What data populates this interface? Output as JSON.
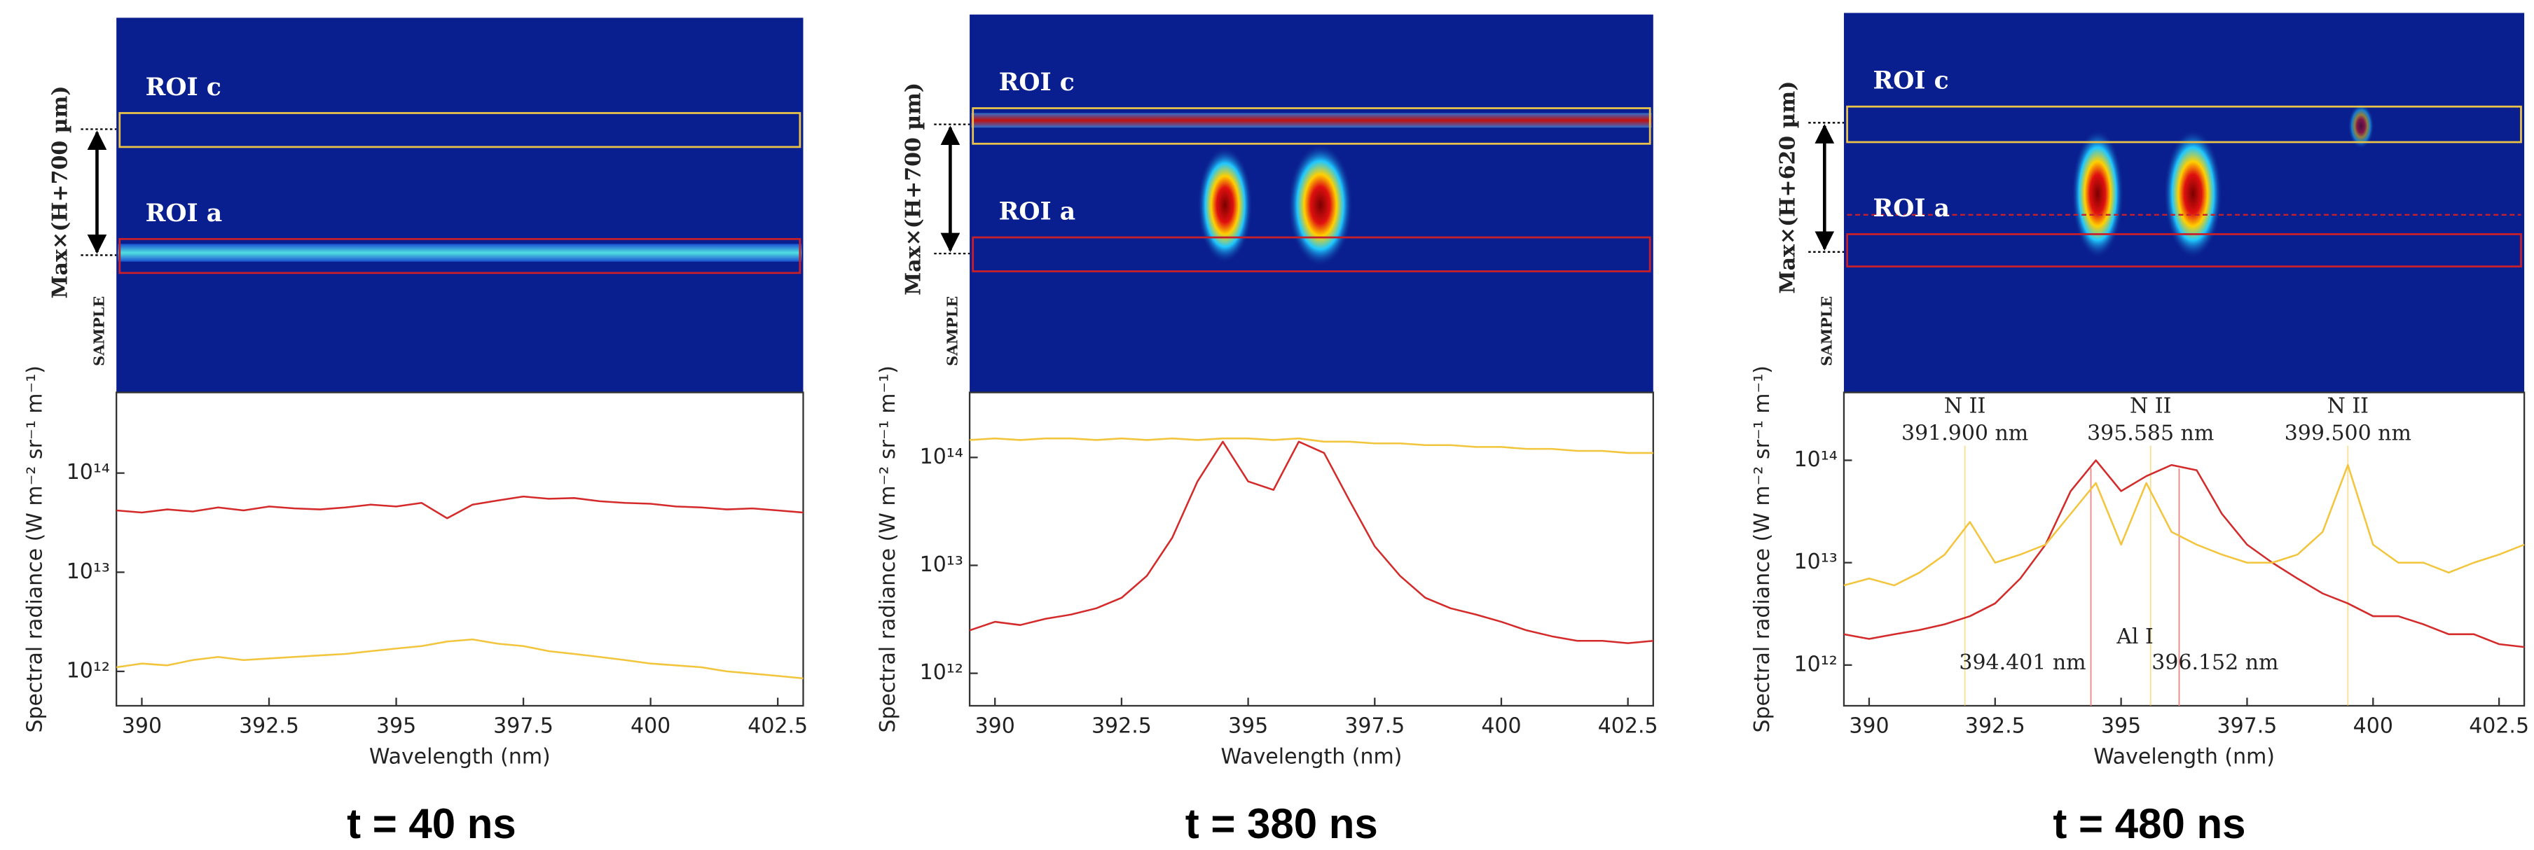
{
  "chart_data": [
    {
      "type": "line",
      "caption": "t = 40 ns",
      "roi_c_label": "ROI c",
      "roi_a_label": "ROI a",
      "height_label": "Max×(H+700 µm)",
      "sample_label": "SAMPLE",
      "x_label": "Wavelength (nm)",
      "y_label": "Spectral radiance (W m⁻² sr⁻¹ m⁻¹)",
      "log_y": true,
      "xlim": [
        389.5,
        403
      ],
      "xticks": [
        390,
        392.5,
        395,
        397.5,
        400,
        402.5
      ],
      "ylim": [
        450000000000.0,
        650000000000000.0
      ],
      "yticks": [
        {
          "value": 1000000000000.0,
          "label": "10¹²"
        },
        {
          "value": 10000000000000.0,
          "label": "10¹³"
        },
        {
          "value": 100000000000000.0,
          "label": "10¹⁴"
        }
      ],
      "x": [
        389.5,
        390,
        390.5,
        391,
        391.5,
        392,
        392.5,
        393,
        393.5,
        394,
        394.5,
        395,
        395.5,
        396,
        396.5,
        397,
        397.5,
        398,
        398.5,
        399,
        399.5,
        400,
        400.5,
        401,
        401.5,
        402,
        402.5,
        403
      ],
      "series": [
        {
          "color": "#d42a2a",
          "values": [
            42000000000000.0,
            40000000000000.0,
            43000000000000.0,
            41000000000000.0,
            45000000000000.0,
            42000000000000.0,
            46000000000000.0,
            44000000000000.0,
            43000000000000.0,
            45000000000000.0,
            48000000000000.0,
            46000000000000.0,
            50000000000000.0,
            35000000000000.0,
            48000000000000.0,
            53000000000000.0,
            58000000000000.0,
            55000000000000.0,
            56000000000000.0,
            52000000000000.0,
            50000000000000.0,
            49000000000000.0,
            46000000000000.0,
            45000000000000.0,
            43000000000000.0,
            44000000000000.0,
            42000000000000.0,
            40000000000000.0
          ]
        },
        {
          "color": "#f2c53d",
          "values": [
            1100000000000.0,
            1200000000000.0,
            1150000000000.0,
            1300000000000.0,
            1400000000000.0,
            1300000000000.0,
            1350000000000.0,
            1400000000000.0,
            1450000000000.0,
            1500000000000.0,
            1600000000000.0,
            1700000000000.0,
            1800000000000.0,
            2000000000000.0,
            2100000000000.0,
            1900000000000.0,
            1800000000000.0,
            1600000000000.0,
            1500000000000.0,
            1400000000000.0,
            1300000000000.0,
            1200000000000.0,
            1150000000000.0,
            1100000000000.0,
            1000000000000.0,
            950000000000.0,
            900000000000.0,
            850000000000.0
          ]
        }
      ]
    },
    {
      "type": "line",
      "caption": "t = 380 ns",
      "roi_c_label": "ROI c",
      "roi_a_label": "ROI a",
      "height_label": "Max×(H+700 µm)",
      "sample_label": "SAMPLE",
      "x_label": "Wavelength (nm)",
      "y_label": "Spectral radiance (W m⁻² sr⁻¹ m⁻¹)",
      "log_y": true,
      "xlim": [
        389.5,
        403
      ],
      "xticks": [
        390,
        392.5,
        395,
        397.5,
        400,
        402.5
      ],
      "ylim": [
        500000000000.0,
        400000000000000.0
      ],
      "yticks": [
        {
          "value": 1000000000000.0,
          "label": "10¹²"
        },
        {
          "value": 10000000000000.0,
          "label": "10¹³"
        },
        {
          "value": 100000000000000.0,
          "label": "10¹⁴"
        }
      ],
      "x": [
        389.5,
        390,
        390.5,
        391,
        391.5,
        392,
        392.5,
        393,
        393.5,
        394,
        394.5,
        395,
        395.5,
        396,
        396.5,
        397,
        397.5,
        398,
        398.5,
        399,
        399.5,
        400,
        400.5,
        401,
        401.5,
        402,
        402.5,
        403
      ],
      "series": [
        {
          "color": "#d42a2a",
          "values": [
            2500000000000.0,
            3000000000000.0,
            2800000000000.0,
            3200000000000.0,
            3500000000000.0,
            4000000000000.0,
            5000000000000.0,
            8000000000000.0,
            18000000000000.0,
            60000000000000.0,
            140000000000000.0,
            60000000000000.0,
            50000000000000.0,
            140000000000000.0,
            110000000000000.0,
            40000000000000.0,
            15000000000000.0,
            8000000000000.0,
            5000000000000.0,
            4000000000000.0,
            3500000000000.0,
            3000000000000.0,
            2500000000000.0,
            2200000000000.0,
            2000000000000.0,
            2000000000000.0,
            1900000000000.0,
            2000000000000.0
          ]
        },
        {
          "color": "#f2c53d",
          "values": [
            145000000000000.0,
            150000000000000.0,
            145000000000000.0,
            150000000000000.0,
            150000000000000.0,
            145000000000000.0,
            150000000000000.0,
            145000000000000.0,
            150000000000000.0,
            145000000000000.0,
            150000000000000.0,
            150000000000000.0,
            145000000000000.0,
            150000000000000.0,
            140000000000000.0,
            140000000000000.0,
            135000000000000.0,
            135000000000000.0,
            130000000000000.0,
            130000000000000.0,
            125000000000000.0,
            125000000000000.0,
            120000000000000.0,
            120000000000000.0,
            115000000000000.0,
            115000000000000.0,
            110000000000000.0,
            110000000000000.0
          ]
        }
      ]
    },
    {
      "type": "line",
      "caption": "t = 480 ns",
      "roi_c_label": "ROI c",
      "roi_a_label": "ROI a",
      "height_label": "Max×(H+620 µm)",
      "sample_label": "SAMPLE",
      "x_label": "Wavelength (nm)",
      "y_label": "Spectral radiance (W m⁻² sr⁻¹ m⁻¹)",
      "log_y": true,
      "xlim": [
        389.5,
        403
      ],
      "xticks": [
        390,
        392.5,
        395,
        397.5,
        400,
        402.5
      ],
      "ylim": [
        400000000000.0,
        460000000000000.0
      ],
      "yticks": [
        {
          "value": 1000000000000.0,
          "label": "10¹²"
        },
        {
          "value": 10000000000000.0,
          "label": "10¹³"
        },
        {
          "value": 100000000000000.0,
          "label": "10¹⁴"
        }
      ],
      "x": [
        389.5,
        390,
        390.5,
        391,
        391.5,
        392,
        392.5,
        393,
        393.5,
        394,
        394.5,
        395,
        395.5,
        396,
        396.5,
        397,
        397.5,
        398,
        398.5,
        399,
        399.5,
        400,
        400.5,
        401,
        401.5,
        402,
        402.5,
        403
      ],
      "series": [
        {
          "color": "#d42a2a",
          "values": [
            2000000000000.0,
            1800000000000.0,
            2000000000000.0,
            2200000000000.0,
            2500000000000.0,
            3000000000000.0,
            4000000000000.0,
            7000000000000.0,
            15000000000000.0,
            50000000000000.0,
            100000000000000.0,
            50000000000000.0,
            70000000000000.0,
            90000000000000.0,
            80000000000000.0,
            30000000000000.0,
            15000000000000.0,
            10000000000000.0,
            7000000000000.0,
            5000000000000.0,
            4000000000000.0,
            3000000000000.0,
            3000000000000.0,
            2500000000000.0,
            2000000000000.0,
            2000000000000.0,
            1600000000000.0,
            1500000000000.0
          ]
        },
        {
          "color": "#f2c53d",
          "values": [
            6000000000000.0,
            7000000000000.0,
            6000000000000.0,
            8000000000000.0,
            12000000000000.0,
            25000000000000.0,
            10000000000000.0,
            12000000000000.0,
            15000000000000.0,
            30000000000000.0,
            60000000000000.0,
            15000000000000.0,
            60000000000000.0,
            20000000000000.0,
            15000000000000.0,
            12000000000000.0,
            10000000000000.0,
            10000000000000.0,
            12000000000000.0,
            20000000000000.0,
            90000000000000.0,
            15000000000000.0,
            10000000000000.0,
            10000000000000.0,
            8000000000000.0,
            10000000000000.0,
            12000000000000.0,
            15000000000000.0
          ]
        }
      ],
      "line_annotations": [
        {
          "species": "N II",
          "text": "391.900 nm",
          "x": 391.9
        },
        {
          "species": "N II",
          "text": "395.585 nm",
          "x": 395.585
        },
        {
          "species": "N II",
          "text": "399.500 nm",
          "x": 399.5
        }
      ],
      "al_i": {
        "label": "Al I",
        "lines": [
          {
            "text": "394.401 nm",
            "x": 394.401
          },
          {
            "text": "396.152 nm",
            "x": 396.152
          }
        ]
      }
    }
  ]
}
